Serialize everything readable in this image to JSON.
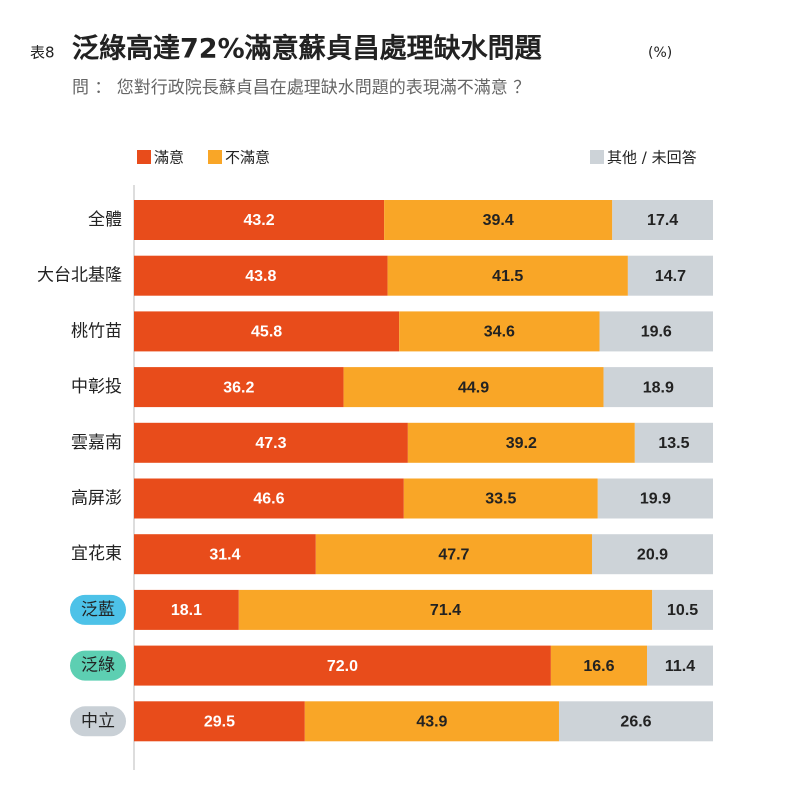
{
  "chart_data": {
    "type": "stacked-bar-horizontal",
    "table_label": "表8",
    "title": "泛綠高達72%滿意蘇貞昌處理缺水問題",
    "unit": "(%)",
    "subtitle": "問 ： 您對行政院長蘇貞昌在處理缺水問題的表現滿不滿意 ？",
    "categories": [
      "全體",
      "大台北基隆",
      "桃竹苗",
      "中彰投",
      "雲嘉南",
      "高屏澎",
      "宜花東",
      "泛藍",
      "泛綠",
      "中立"
    ],
    "category_badges": [
      null,
      null,
      null,
      null,
      null,
      null,
      null,
      "#4dc2e8",
      "#5dcfb2",
      "#c9d0d6"
    ],
    "series": [
      {
        "name": "滿意",
        "color": "#e84c1b",
        "values": [
          43.2,
          43.8,
          45.8,
          36.2,
          47.3,
          46.6,
          31.4,
          18.1,
          72.0,
          29.5
        ],
        "value_labels": [
          "43.2",
          "43.8",
          "45.8",
          "36.2",
          "47.3",
          "46.6",
          "31.4",
          "18.1",
          "72.0",
          "29.5"
        ]
      },
      {
        "name": "不滿意",
        "color": "#f9a627",
        "values": [
          39.4,
          41.5,
          34.6,
          44.9,
          39.2,
          33.5,
          47.7,
          71.4,
          16.6,
          43.9
        ]
      },
      {
        "name": "其他 / 未回答",
        "color": "#cdd3d8",
        "values": [
          17.4,
          14.7,
          19.6,
          18.9,
          13.5,
          19.9,
          20.9,
          10.5,
          11.4,
          26.6
        ]
      }
    ],
    "xlim": [
      0,
      100
    ]
  }
}
